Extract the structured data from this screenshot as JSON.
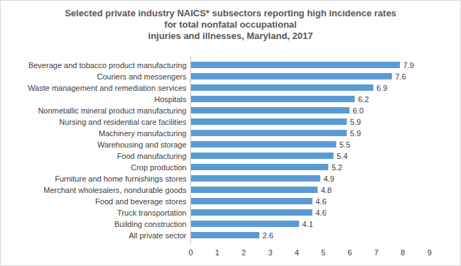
{
  "chart_data": {
    "type": "bar",
    "orientation": "horizontal",
    "title": "Selected private industry NAICS* subsectors reporting high incidence rates\nfor total nonfatal occupational\ninjuries and illnesses, Maryland, 2017",
    "categories": [
      "Beverage and tobacco product manufacturing",
      "Couriers and messengers",
      "Waste management and remediation services",
      "Hospitals",
      "Nonmetallic mineral product manufacturing",
      "Nursing and residential care facilities",
      "Machinery manufacturing",
      "Warehousing and storage",
      "Food manufacturing",
      "Crop production",
      "Furniture and home furnishings stores",
      "Merchant wholesalers, nondurable goods",
      "Food and beverage stores",
      "Truck transportation",
      "Building construction",
      "All private sector"
    ],
    "values": [
      7.9,
      7.6,
      6.9,
      6.2,
      6.0,
      5.9,
      5.9,
      5.5,
      5.4,
      5.2,
      4.9,
      4.8,
      4.6,
      4.6,
      4.1,
      2.6
    ],
    "value_labels": [
      "7.9",
      "7.6",
      "6.9",
      "6.2",
      "6.0",
      "5.9",
      "5.9",
      "5.5",
      "5.4",
      "5.2",
      "4.9",
      "4.8",
      "4.6",
      "4.6",
      "4.1",
      "2.6"
    ],
    "data_labels": true,
    "color": "#5b9bd5",
    "xlim": [
      0,
      9
    ],
    "xticks": [
      0,
      1,
      2,
      3,
      4,
      5,
      6,
      7,
      8,
      9
    ],
    "grid": false
  }
}
